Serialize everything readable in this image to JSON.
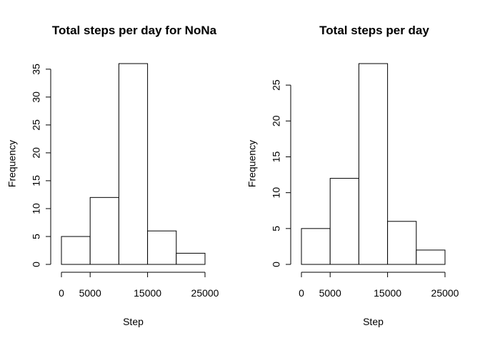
{
  "chart_data": [
    {
      "type": "bar",
      "title": "Total steps per day for NoNa",
      "xlabel": "Step",
      "ylabel": "Frequency",
      "bins": [
        [
          0,
          5000
        ],
        [
          5000,
          10000
        ],
        [
          10000,
          15000
        ],
        [
          15000,
          20000
        ],
        [
          20000,
          25000
        ]
      ],
      "values": [
        5,
        12,
        36,
        6,
        2
      ],
      "xticks": [
        0,
        5000,
        15000,
        25000
      ],
      "yticks": [
        0,
        5,
        10,
        15,
        20,
        25,
        30,
        35
      ],
      "xlim": [
        0,
        25000
      ],
      "ylim": [
        0,
        36
      ],
      "grid": false
    },
    {
      "type": "bar",
      "title": "Total steps per day",
      "xlabel": "Step",
      "ylabel": "Frequency",
      "bins": [
        [
          0,
          5000
        ],
        [
          5000,
          10000
        ],
        [
          10000,
          15000
        ],
        [
          15000,
          20000
        ],
        [
          20000,
          25000
        ]
      ],
      "values": [
        5,
        12,
        28,
        6,
        2
      ],
      "xticks": [
        0,
        5000,
        15000,
        25000
      ],
      "yticks": [
        0,
        5,
        10,
        15,
        20,
        25
      ],
      "xlim": [
        0,
        25000
      ],
      "ylim": [
        0,
        28
      ],
      "grid": false
    }
  ]
}
